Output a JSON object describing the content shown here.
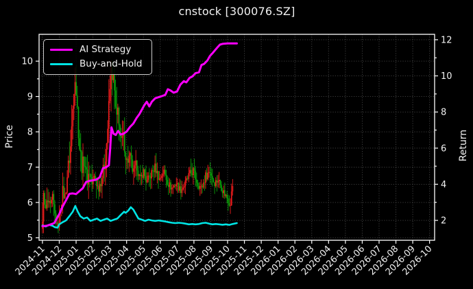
{
  "title": "cnstock [300076.SZ]",
  "axes": {
    "left_label": "Price",
    "right_label": "Return",
    "left_ticks": [
      5,
      6,
      7,
      8,
      9,
      10
    ],
    "right_ticks": [
      2,
      4,
      6,
      8,
      10,
      12
    ],
    "x_tick_labels": [
      "2024-11",
      "2024-12",
      "2025-01",
      "2025-02",
      "2025-03",
      "2025-04",
      "2025-05",
      "2025-06",
      "2025-07",
      "2025-08",
      "2025-09",
      "2025-10",
      "2025-11",
      "2025-12",
      "2026-01",
      "2026-02",
      "2026-03",
      "2026-04",
      "2026-05",
      "2026-06",
      "2026-07",
      "2026-08",
      "2026-09",
      "2026-10"
    ]
  },
  "legend": {
    "items": [
      {
        "label": "AI Strategy",
        "color": "#ff00ff"
      },
      {
        "label": "Buy-and-Hold",
        "color": "#00e5e5"
      }
    ]
  },
  "colors": {
    "background": "#000000",
    "frame": "#ffffff",
    "grid": "#474747",
    "text": "#f2f2f2",
    "up_candle": "#ee1c1c",
    "down_candle": "#0aa00a",
    "ai_strategy": "#ff00ff",
    "buy_and_hold": "#00e5e5"
  },
  "chart_data": {
    "type": "candlestick+line",
    "title": "cnstock [300076.SZ]",
    "ylabel_left": "Price",
    "ylabel_right": "Return",
    "grid": true,
    "legend_position": "upper-left",
    "x_unit": "months since 2024-11 tick (one unit = one month tick interval)",
    "x_axis_range_months": [
      -0.2,
      23.3
    ],
    "price_axis_range": [
      4.93,
      10.76
    ],
    "return_axis_range": [
      0.9,
      12.3
    ],
    "series": [
      {
        "name": "AI Strategy",
        "axis": "return",
        "color": "#ff00ff",
        "points": [
          [
            0,
            1.68
          ],
          [
            0.25,
            1.7
          ],
          [
            0.5,
            1.78
          ],
          [
            0.7,
            1.85
          ],
          [
            0.85,
            2.1
          ],
          [
            1,
            2.35
          ],
          [
            1.2,
            2.77
          ],
          [
            1.4,
            3.11
          ],
          [
            1.6,
            3.47
          ],
          [
            1.8,
            3.49
          ],
          [
            2,
            3.46
          ],
          [
            2.2,
            3.62
          ],
          [
            2.4,
            3.78
          ],
          [
            2.6,
            4.13
          ],
          [
            2.8,
            4.19
          ],
          [
            3,
            4.22
          ],
          [
            3.2,
            4.26
          ],
          [
            3.4,
            4.38
          ],
          [
            3.6,
            4.89
          ],
          [
            3.8,
            4.95
          ],
          [
            3.95,
            5.05
          ],
          [
            4.02,
            5.9
          ],
          [
            4.1,
            7.15
          ],
          [
            4.22,
            6.8
          ],
          [
            4.35,
            6.73
          ],
          [
            4.5,
            6.95
          ],
          [
            4.65,
            6.75
          ],
          [
            4.82,
            6.8
          ],
          [
            5,
            6.92
          ],
          [
            5.2,
            7.17
          ],
          [
            5.4,
            7.36
          ],
          [
            5.6,
            7.68
          ],
          [
            5.75,
            7.87
          ],
          [
            5.9,
            8.12
          ],
          [
            6.05,
            8.38
          ],
          [
            6.2,
            8.57
          ],
          [
            6.35,
            8.31
          ],
          [
            6.5,
            8.57
          ],
          [
            6.7,
            8.76
          ],
          [
            6.9,
            8.82
          ],
          [
            7.1,
            8.88
          ],
          [
            7.3,
            8.95
          ],
          [
            7.45,
            9.26
          ],
          [
            7.6,
            9.2
          ],
          [
            7.8,
            9.07
          ],
          [
            8,
            9.14
          ],
          [
            8.2,
            9.52
          ],
          [
            8.4,
            9.71
          ],
          [
            8.55,
            9.64
          ],
          [
            8.75,
            9.9
          ],
          [
            8.9,
            9.96
          ],
          [
            9.1,
            10.15
          ],
          [
            9.3,
            10.2
          ],
          [
            9.45,
            10.6
          ],
          [
            9.6,
            10.66
          ],
          [
            9.8,
            10.85
          ],
          [
            9.95,
            11.1
          ],
          [
            10.1,
            11.25
          ],
          [
            10.25,
            11.42
          ],
          [
            10.4,
            11.58
          ],
          [
            10.55,
            11.73
          ],
          [
            10.7,
            11.77
          ],
          [
            11,
            11.8
          ],
          [
            11.3,
            11.8
          ],
          [
            11.55,
            11.8
          ]
        ]
      },
      {
        "name": "Buy-and-Hold",
        "axis": "return",
        "color": "#00e5e5",
        "points": [
          [
            0,
            1.72
          ],
          [
            0.2,
            1.66
          ],
          [
            0.4,
            1.75
          ],
          [
            0.6,
            1.7
          ],
          [
            0.75,
            1.62
          ],
          [
            0.9,
            1.6
          ],
          [
            1,
            1.78
          ],
          [
            1.2,
            1.9
          ],
          [
            1.4,
            2.0
          ],
          [
            1.6,
            2.23
          ],
          [
            1.8,
            2.48
          ],
          [
            1.95,
            2.8
          ],
          [
            2.1,
            2.48
          ],
          [
            2.25,
            2.23
          ],
          [
            2.45,
            2.1
          ],
          [
            2.65,
            2.16
          ],
          [
            2.85,
            1.97
          ],
          [
            3.05,
            2.04
          ],
          [
            3.25,
            2.1
          ],
          [
            3.45,
            1.97
          ],
          [
            3.65,
            2.04
          ],
          [
            3.85,
            2.1
          ],
          [
            4.05,
            1.97
          ],
          [
            4.25,
            2.04
          ],
          [
            4.45,
            2.1
          ],
          [
            4.65,
            2.3
          ],
          [
            4.85,
            2.48
          ],
          [
            4.95,
            2.42
          ],
          [
            5.1,
            2.54
          ],
          [
            5.25,
            2.73
          ],
          [
            5.4,
            2.6
          ],
          [
            5.55,
            2.35
          ],
          [
            5.7,
            2.1
          ],
          [
            5.9,
            2.04
          ],
          [
            6.1,
            1.97
          ],
          [
            6.3,
            2.04
          ],
          [
            6.5,
            2.0
          ],
          [
            6.7,
            1.97
          ],
          [
            6.9,
            2.0
          ],
          [
            7.1,
            1.97
          ],
          [
            7.3,
            1.94
          ],
          [
            7.5,
            1.9
          ],
          [
            7.7,
            1.87
          ],
          [
            7.9,
            1.85
          ],
          [
            8.1,
            1.87
          ],
          [
            8.3,
            1.85
          ],
          [
            8.5,
            1.82
          ],
          [
            8.7,
            1.78
          ],
          [
            8.9,
            1.8
          ],
          [
            9.1,
            1.78
          ],
          [
            9.3,
            1.8
          ],
          [
            9.5,
            1.85
          ],
          [
            9.7,
            1.87
          ],
          [
            9.9,
            1.82
          ],
          [
            10.1,
            1.78
          ],
          [
            10.3,
            1.8
          ],
          [
            10.5,
            1.78
          ],
          [
            10.7,
            1.76
          ],
          [
            10.9,
            1.78
          ],
          [
            11.1,
            1.75
          ],
          [
            11.3,
            1.8
          ],
          [
            11.55,
            1.85
          ]
        ]
      }
    ],
    "candlesticks": {
      "axis": "price",
      "up_color": "#ee1c1c",
      "down_color": "#0aa00a",
      "count": 170,
      "start_month": 0,
      "end_month": 11.3,
      "clamp": [
        5.13,
        10.02
      ],
      "close_path_m_price_vol": [
        [
          0,
          5.3,
          0.45
        ],
        [
          0.06,
          6.55,
          0.5
        ],
        [
          0.15,
          5.65,
          0.35
        ],
        [
          0.3,
          6.05,
          0.3
        ],
        [
          0.45,
          5.8,
          0.3
        ],
        [
          0.6,
          6.1,
          0.3
        ],
        [
          0.75,
          5.6,
          0.25
        ],
        [
          0.9,
          5.25,
          0.2
        ],
        [
          1.05,
          5.8,
          0.25
        ],
        [
          1.2,
          6.3,
          0.35
        ],
        [
          1.35,
          6.15,
          0.3
        ],
        [
          1.5,
          6.9,
          0.4
        ],
        [
          1.65,
          7.4,
          0.45
        ],
        [
          1.8,
          8.6,
          0.55
        ],
        [
          1.92,
          9.85,
          0.6
        ],
        [
          2.05,
          8.8,
          0.55
        ],
        [
          2.2,
          7.6,
          0.5
        ],
        [
          2.35,
          7.0,
          0.4
        ],
        [
          2.5,
          7.25,
          0.35
        ],
        [
          2.65,
          6.6,
          0.35
        ],
        [
          2.8,
          6.9,
          0.35
        ],
        [
          2.95,
          6.5,
          0.3
        ],
        [
          3.1,
          6.75,
          0.3
        ],
        [
          3.3,
          6.4,
          0.3
        ],
        [
          3.5,
          6.65,
          0.3
        ],
        [
          3.7,
          7.1,
          0.35
        ],
        [
          3.85,
          7.9,
          0.45
        ],
        [
          4.0,
          9.1,
          0.55
        ],
        [
          4.1,
          9.85,
          0.6
        ],
        [
          4.25,
          9.3,
          0.55
        ],
        [
          4.4,
          8.2,
          0.5
        ],
        [
          4.5,
          8.7,
          0.45
        ],
        [
          4.65,
          7.6,
          0.4
        ],
        [
          4.8,
          7.9,
          0.35
        ],
        [
          5.0,
          7.15,
          0.35
        ],
        [
          5.2,
          7.3,
          0.3
        ],
        [
          5.4,
          6.8,
          0.3
        ],
        [
          5.6,
          7.1,
          0.3
        ],
        [
          5.8,
          6.6,
          0.25
        ],
        [
          6.0,
          6.9,
          0.25
        ],
        [
          6.2,
          6.55,
          0.25
        ],
        [
          6.45,
          6.8,
          0.25
        ],
        [
          6.7,
          7.0,
          0.25
        ],
        [
          6.95,
          6.65,
          0.2
        ],
        [
          7.2,
          6.9,
          0.2
        ],
        [
          7.45,
          6.55,
          0.2
        ],
        [
          7.7,
          6.4,
          0.2
        ],
        [
          7.95,
          6.55,
          0.2
        ],
        [
          8.2,
          6.35,
          0.2
        ],
        [
          8.45,
          6.5,
          0.2
        ],
        [
          8.7,
          6.75,
          0.25
        ],
        [
          8.95,
          6.9,
          0.25
        ],
        [
          9.2,
          6.55,
          0.2
        ],
        [
          9.45,
          6.4,
          0.2
        ],
        [
          9.7,
          6.75,
          0.25
        ],
        [
          9.95,
          6.9,
          0.25
        ],
        [
          10.2,
          6.55,
          0.2
        ],
        [
          10.45,
          6.65,
          0.2
        ],
        [
          10.7,
          6.35,
          0.2
        ],
        [
          10.95,
          6.15,
          0.2
        ],
        [
          11.15,
          5.95,
          0.2
        ],
        [
          11.3,
          6.5,
          0.25
        ]
      ]
    }
  }
}
